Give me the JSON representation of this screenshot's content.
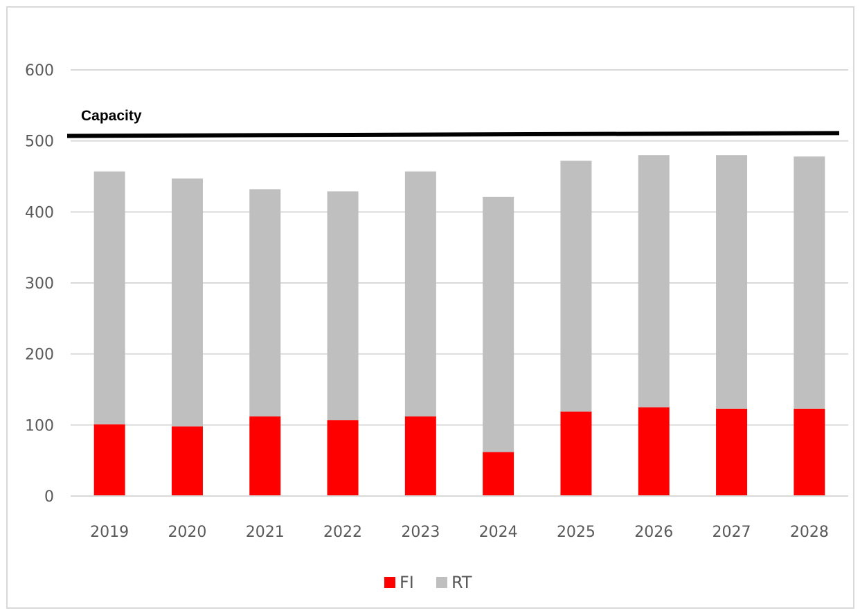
{
  "chart_data": {
    "type": "bar",
    "stacked": true,
    "title": "",
    "xlabel": "",
    "ylabel": "",
    "categories": [
      "2019",
      "2020",
      "2021",
      "2022",
      "2023",
      "2024",
      "2025",
      "2026",
      "2027",
      "2028"
    ],
    "series": [
      {
        "name": "FI",
        "color": "#ff0000",
        "values": [
          101,
          98,
          112,
          107,
          112,
          62,
          119,
          125,
          123,
          123
        ]
      },
      {
        "name": "RT",
        "color": "#bfbfbf",
        "values": [
          356,
          349,
          320,
          322,
          345,
          359,
          353,
          355,
          357,
          355
        ]
      }
    ],
    "ylim": [
      0,
      600
    ],
    "yticks": [
      0,
      100,
      200,
      300,
      400,
      500,
      600
    ],
    "grid": true,
    "legend_position": "bottom",
    "annotations": [
      {
        "type": "horizontal-line",
        "label": "Capacity",
        "y_start": 507,
        "y_end": 511,
        "color": "#000000"
      }
    ]
  }
}
